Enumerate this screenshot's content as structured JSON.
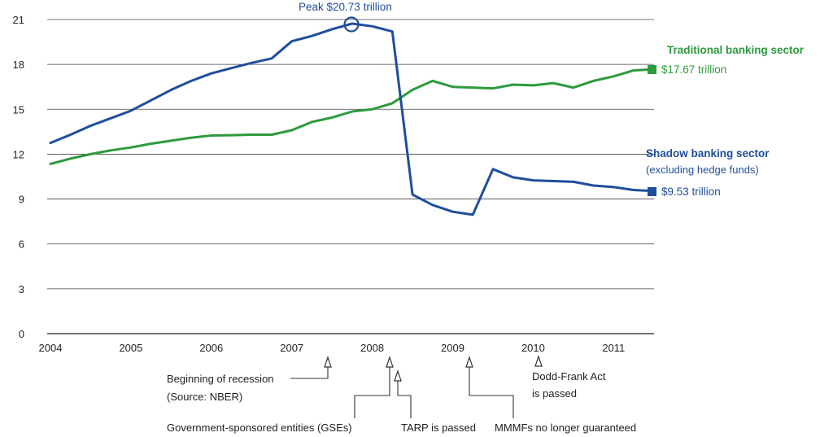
{
  "chart_data": {
    "type": "line",
    "title": "",
    "xlabel": "",
    "ylabel": "",
    "ylim": [
      0,
      21
    ],
    "yticks": [
      0,
      3,
      6,
      9,
      12,
      15,
      18,
      21
    ],
    "xlim": [
      2004,
      2011.5
    ],
    "xticks": [
      "2004",
      "2005",
      "2006",
      "2007",
      "2008",
      "2009",
      "2010",
      "2011"
    ],
    "grid": true,
    "colors": {
      "traditional": "#2e9a3e",
      "shadow": "#1f4e9c",
      "grid": "#444444",
      "annotation": "#333333"
    },
    "series": [
      {
        "name": "Traditional banking sector",
        "key": "traditional",
        "end_label": "$17.67 trillion",
        "x": [
          2004,
          2004.25,
          2004.5,
          2004.75,
          2005,
          2005.25,
          2005.5,
          2005.75,
          2006,
          2006.25,
          2006.5,
          2006.75,
          2007,
          2007.25,
          2007.5,
          2007.75,
          2008,
          2008.25,
          2008.5,
          2008.75,
          2009,
          2009.25,
          2009.5,
          2009.75,
          2010,
          2010.25,
          2010.5,
          2010.75,
          2011,
          2011.25,
          2011.5
        ],
        "values": [
          11.35,
          11.7,
          12.0,
          12.25,
          12.45,
          12.7,
          12.9,
          13.1,
          13.25,
          13.27,
          13.3,
          13.3,
          13.6,
          14.15,
          14.45,
          14.85,
          15.0,
          15.4,
          16.3,
          16.9,
          16.5,
          16.45,
          16.4,
          16.65,
          16.6,
          16.75,
          16.45,
          16.9,
          17.2,
          17.6,
          17.67
        ]
      },
      {
        "name": "Shadow banking sector",
        "subtitle": "(excluding hedge funds)",
        "key": "shadow",
        "end_label": "$9.53 trillion",
        "x": [
          2004,
          2004.25,
          2004.5,
          2004.75,
          2005,
          2005.25,
          2005.5,
          2005.75,
          2006,
          2006.25,
          2006.5,
          2006.75,
          2007,
          2007.25,
          2007.5,
          2007.75,
          2008,
          2008.25,
          2008.5,
          2008.75,
          2009,
          2009.25,
          2009.5,
          2009.75,
          2010,
          2010.25,
          2010.5,
          2010.75,
          2011,
          2011.25,
          2011.5
        ],
        "values": [
          12.75,
          13.3,
          13.9,
          14.4,
          14.9,
          15.6,
          16.3,
          16.9,
          17.4,
          17.75,
          18.1,
          18.4,
          19.55,
          19.9,
          20.35,
          20.73,
          20.55,
          20.2,
          9.3,
          8.6,
          8.15,
          7.95,
          11.0,
          10.45,
          10.25,
          10.2,
          10.15,
          9.9,
          9.8,
          9.6,
          9.53
        ]
      }
    ],
    "peak": {
      "label": "Peak $20.73 trillion",
      "x": 2007.75,
      "y": 20.73
    },
    "events": [
      {
        "key": "recession",
        "lines": [
          "Beginning of recession",
          "(Source: NBER)"
        ],
        "x": 2007.4
      },
      {
        "key": "gse",
        "lines": [
          "Government-sponsored entities (GSEs)"
        ],
        "x": 2008.25
      },
      {
        "key": "tarp",
        "lines": [
          "TARP is passed"
        ],
        "x": 2008.33
      },
      {
        "key": "mmmf",
        "lines": [
          "MMMFs no longer guaranteed"
        ],
        "x": 2009.2
      },
      {
        "key": "doddfrank",
        "lines": [
          "Dodd-Frank Act",
          "is passed"
        ],
        "x": 2010.07
      }
    ]
  }
}
